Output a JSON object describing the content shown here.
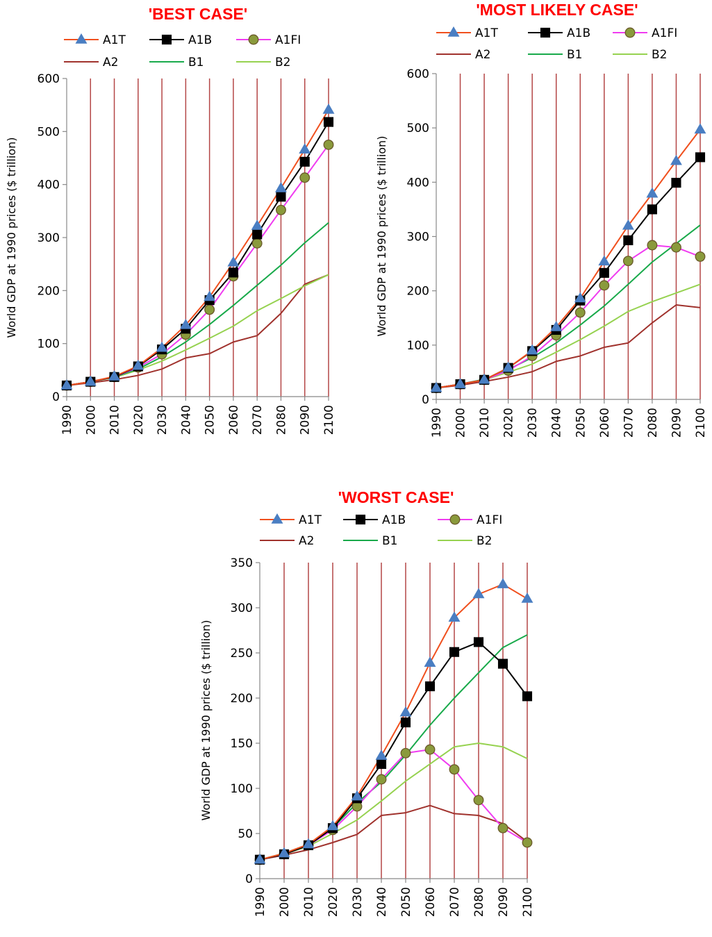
{
  "colors": {
    "A1T": "#f0501e",
    "A1B": "#000000",
    "A1FI": "#f03cf0",
    "A2": "#a0322d",
    "B1": "#19aa4b",
    "B2": "#96d250",
    "vgrid": "#b44646",
    "title": "#ff0000",
    "triangle_marker": "#4a7ec2",
    "circle_marker_fill": "#8a9a3c",
    "circle_marker_stroke": "#6a5a2a"
  },
  "legend_order": [
    "A1T",
    "A1B",
    "A1FI",
    "A2",
    "B1",
    "B2"
  ],
  "chart_data": [
    {
      "type": "line",
      "title": "'BEST CASE'",
      "ylabel": "World GDP at 1990 prices ($ trillion)",
      "ylim": [
        0,
        600
      ],
      "yticks": [
        0,
        100,
        200,
        300,
        400,
        500,
        600
      ],
      "x": [
        1990,
        2000,
        2010,
        2020,
        2030,
        2040,
        2050,
        2060,
        2070,
        2080,
        2090,
        2100
      ],
      "vertical_grid": true,
      "legend_position": "top",
      "series": [
        {
          "name": "A1T",
          "marker": "triangle",
          "values": [
            21,
            28,
            38,
            58,
            92,
            135,
            188,
            253,
            322,
            393,
            466,
            541
          ]
        },
        {
          "name": "A1B",
          "marker": "square",
          "values": [
            21,
            28,
            37,
            57,
            89,
            128,
            182,
            234,
            306,
            377,
            443,
            518
          ]
        },
        {
          "name": "A1FI",
          "marker": "circle",
          "values": [
            21,
            28,
            37,
            55,
            80,
            117,
            164,
            227,
            289,
            352,
            413,
            475
          ]
        },
        {
          "name": "A2",
          "marker": "none",
          "values": [
            21,
            26,
            32,
            40,
            52,
            73,
            81,
            103,
            115,
            157,
            212,
            230
          ]
        },
        {
          "name": "B1",
          "marker": "none",
          "values": [
            21,
            28,
            37,
            52,
            75,
            103,
            136,
            172,
            210,
            248,
            290,
            328
          ]
        },
        {
          "name": "B2",
          "marker": "none",
          "values": [
            21,
            28,
            36,
            50,
            67,
            88,
            110,
            133,
            162,
            185,
            209,
            230
          ]
        }
      ]
    },
    {
      "type": "line",
      "title": "'MOST LIKELY CASE'",
      "ylabel": "World GDP at 1990 prices ($ trillion)",
      "ylim": [
        0,
        600
      ],
      "yticks": [
        0,
        100,
        200,
        300,
        400,
        500,
        600
      ],
      "x": [
        1990,
        2000,
        2010,
        2020,
        2030,
        2040,
        2050,
        2060,
        2070,
        2080,
        2090,
        2100
      ],
      "vertical_grid": true,
      "legend_position": "top",
      "series": [
        {
          "name": "A1T",
          "marker": "triangle",
          "values": [
            21,
            28,
            36,
            58,
            90,
            133,
            186,
            254,
            320,
            379,
            439,
            497
          ]
        },
        {
          "name": "A1B",
          "marker": "square",
          "values": [
            21,
            28,
            36,
            58,
            89,
            128,
            182,
            233,
            293,
            350,
            399,
            446
          ]
        },
        {
          "name": "A1FI",
          "marker": "circle",
          "values": [
            21,
            28,
            36,
            53,
            80,
            118,
            160,
            210,
            255,
            284,
            280,
            263
          ]
        },
        {
          "name": "A2",
          "marker": "none",
          "values": [
            21,
            26,
            33,
            41,
            51,
            70,
            80,
            96,
            104,
            141,
            174,
            169
          ]
        },
        {
          "name": "B1",
          "marker": "none",
          "values": [
            21,
            28,
            37,
            55,
            77,
            104,
            137,
            172,
            212,
            253,
            287,
            321
          ]
        },
        {
          "name": "B2",
          "marker": "none",
          "values": [
            21,
            28,
            36,
            50,
            65,
            87,
            110,
            135,
            162,
            180,
            196,
            212
          ]
        }
      ]
    },
    {
      "type": "line",
      "title": "'WORST CASE'",
      "ylabel": "World GDP at 1990 prices ($ trillion)",
      "ylim": [
        0,
        350
      ],
      "yticks": [
        0,
        50,
        100,
        150,
        200,
        250,
        300,
        350
      ],
      "x": [
        1990,
        2000,
        2010,
        2020,
        2030,
        2040,
        2050,
        2060,
        2070,
        2080,
        2090,
        2100
      ],
      "vertical_grid": true,
      "legend_position": "top",
      "series": [
        {
          "name": "A1T",
          "marker": "triangle",
          "values": [
            21,
            28,
            38,
            58,
            91,
            136,
            184,
            239,
            289,
            315,
            326,
            310
          ]
        },
        {
          "name": "A1B",
          "marker": "square",
          "values": [
            21,
            27,
            37,
            56,
            89,
            127,
            173,
            213,
            251,
            262,
            238,
            202
          ]
        },
        {
          "name": "A1FI",
          "marker": "circle",
          "values": [
            21,
            27,
            37,
            54,
            80,
            110,
            139,
            143,
            121,
            87,
            56,
            40
          ]
        },
        {
          "name": "A2",
          "marker": "none",
          "values": [
            21,
            26,
            32,
            40,
            49,
            70,
            73,
            81,
            72,
            70,
            61,
            41
          ]
        },
        {
          "name": "B1",
          "marker": "none",
          "values": [
            21,
            28,
            38,
            56,
            84,
            107,
            137,
            170,
            200,
            228,
            256,
            270
          ]
        },
        {
          "name": "B2",
          "marker": "none",
          "values": [
            21,
            27,
            36,
            50,
            65,
            86,
            108,
            127,
            146,
            150,
            146,
            133
          ]
        }
      ]
    }
  ]
}
